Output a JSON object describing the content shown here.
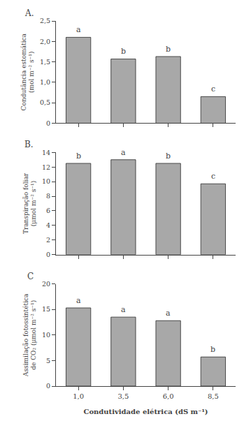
{
  "chart_data": [
    {
      "type": "bar",
      "title": "A.",
      "categories": [
        "1,0",
        "3,5",
        "6,0",
        "8,5"
      ],
      "values": [
        2.1,
        1.57,
        1.63,
        0.65
      ],
      "annotations": [
        "a",
        "b",
        "b",
        "c"
      ],
      "ylabel": "Condutância estomática\n(mol m⁻² s⁻¹)",
      "ylim": [
        0,
        2.5
      ],
      "yticks": [
        0,
        {
          "value": 0.5,
          "label": "0,5"
        },
        {
          "value": 1.0,
          "label": "1,0"
        },
        {
          "value": 1.5,
          "label": "1,5"
        },
        {
          "value": 2.0,
          "label": "2,0"
        },
        {
          "value": 2.5,
          "label": "2,5"
        }
      ],
      "color": "#a8a8a8",
      "grid": false,
      "tick_labels": "y"
    },
    {
      "type": "bar",
      "title": "B.",
      "categories": [
        "1,0",
        "3,5",
        "6,0",
        "8,5"
      ],
      "values": [
        12.5,
        13.0,
        12.5,
        9.7
      ],
      "annotations": [
        "b",
        "a",
        "b",
        "c"
      ],
      "ylabel": "Transpiração foliar\n(μmol m⁻² s⁻¹)",
      "ylim": [
        0,
        14
      ],
      "yticks": [
        0,
        2,
        4,
        6,
        8,
        10,
        12,
        14
      ],
      "color": "#a8a8a8",
      "grid": false,
      "tick_labels": "y"
    },
    {
      "type": "bar",
      "title": "C",
      "categories": [
        "1,0",
        "3,5",
        "6,0",
        "8,5"
      ],
      "values": [
        15.3,
        13.5,
        12.8,
        5.7
      ],
      "annotations": [
        "a",
        "a",
        "a",
        "b"
      ],
      "ylabel": "Assimilação fotossintética\nde CO₂ (μmol m⁻² s⁻¹)",
      "xlabel": "Condutividade elétrica (dS m⁻¹)",
      "ylim": [
        0,
        20
      ],
      "yticks": [
        0,
        5,
        10,
        15,
        20
      ],
      "color": "#a8a8a8",
      "grid": false
    }
  ]
}
